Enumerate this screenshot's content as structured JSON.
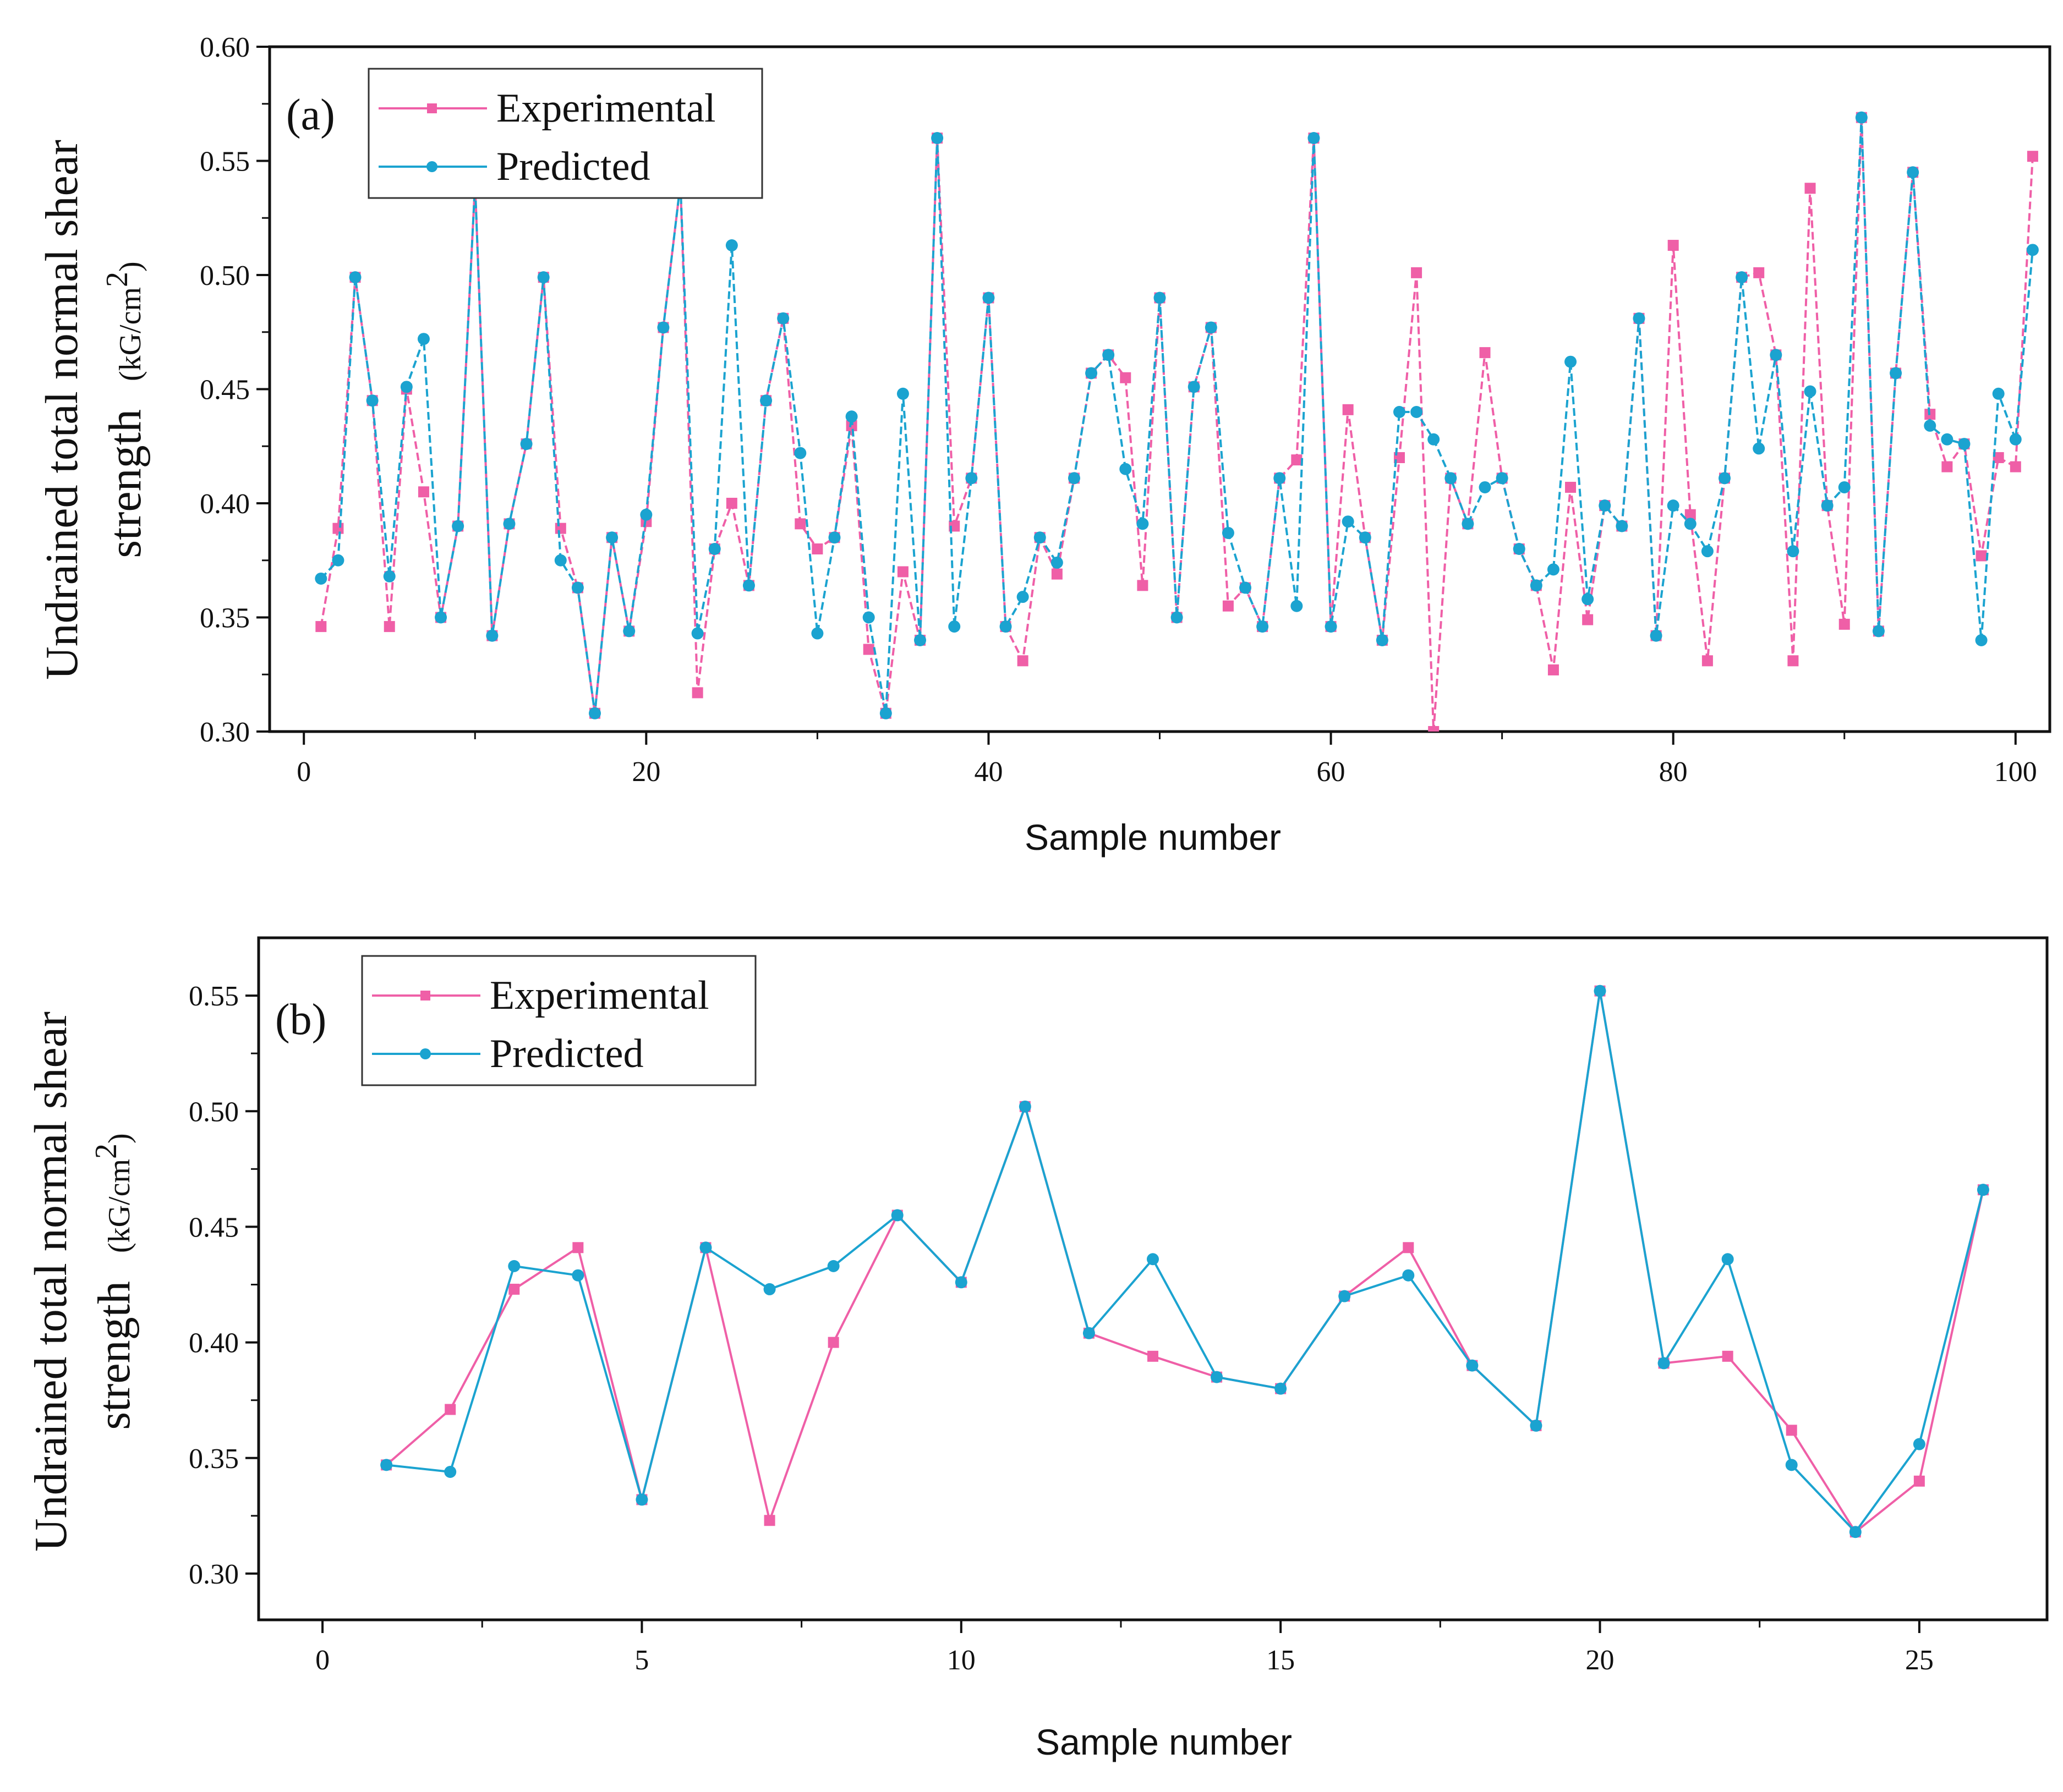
{
  "colors": {
    "experimental": "#ef5fa7",
    "predicted": "#1ba3d0",
    "axis": "#111111"
  },
  "chart_data": [
    {
      "type": "line",
      "panel_label": "(a)",
      "xlabel": "Sample number",
      "ylabel_line1": "Undrained total normal shear",
      "ylabel_line2": "strength",
      "ylabel_unit_prefix": "(kG/cm",
      "ylabel_unit_sup": "2",
      "ylabel_unit_suffix": ")",
      "xlim": [
        -2,
        102
      ],
      "ylim": [
        0.3,
        0.6
      ],
      "xticks": [
        0,
        20,
        40,
        60,
        80,
        100
      ],
      "xtick_labels": [
        "0",
        "20",
        "40",
        "60",
        "80",
        "100"
      ],
      "yticks": [
        0.3,
        0.35,
        0.4,
        0.45,
        0.5,
        0.55,
        0.6
      ],
      "ytick_labels": [
        "0.30",
        "0.35",
        "0.40",
        "0.45",
        "0.50",
        "0.55",
        "0.60"
      ],
      "legend": [
        "Experimental",
        "Predicted"
      ],
      "legend_position": "top-left",
      "series": [
        {
          "name": "Experimental",
          "x": [
            1,
            2,
            3,
            4,
            5,
            6,
            7,
            8,
            9,
            10,
            11,
            12,
            13,
            14,
            15,
            16,
            17,
            18,
            19,
            20,
            21,
            22,
            23,
            24,
            25,
            26,
            27,
            28,
            29,
            30,
            31,
            32,
            33,
            34,
            35,
            36,
            37,
            38,
            39,
            40,
            41,
            42,
            43,
            44,
            45,
            46,
            47,
            48,
            49,
            50,
            51,
            52,
            53,
            54,
            55,
            56,
            57,
            58,
            59,
            60,
            61,
            62,
            63,
            64,
            65,
            66,
            67,
            68,
            69,
            70,
            71,
            72,
            73,
            74,
            75,
            76,
            77,
            78,
            79,
            80,
            81,
            82,
            83,
            84,
            85,
            86,
            87,
            88,
            89,
            90,
            91,
            92,
            93,
            94,
            95,
            96,
            97,
            98,
            99,
            100,
            101
          ],
          "values": [
            0.346,
            0.389,
            0.499,
            0.445,
            0.346,
            0.45,
            0.405,
            0.35,
            0.39,
            0.54,
            0.342,
            0.391,
            0.426,
            0.499,
            0.389,
            0.363,
            0.308,
            0.385,
            0.344,
            0.392,
            0.477,
            0.54,
            0.317,
            0.38,
            0.4,
            0.364,
            0.445,
            0.481,
            0.391,
            0.38,
            0.385,
            0.434,
            0.336,
            0.308,
            0.37,
            0.34,
            0.56,
            0.39,
            0.411,
            0.49,
            0.346,
            0.331,
            0.385,
            0.369,
            0.411,
            0.457,
            0.465,
            0.455,
            0.364,
            0.49,
            0.35,
            0.451,
            0.477,
            0.355,
            0.363,
            0.346,
            0.411,
            0.419,
            0.56,
            0.346,
            0.441,
            0.385,
            0.34,
            0.42,
            0.501,
            0.3,
            0.411,
            0.391,
            0.466,
            0.411,
            0.38,
            0.364,
            0.327,
            0.407,
            0.349,
            0.399,
            0.39,
            0.481,
            0.342,
            0.513,
            0.395,
            0.331,
            0.411,
            0.499,
            0.501,
            0.465,
            0.331,
            0.538,
            0.399,
            0.347,
            0.569,
            0.344,
            0.457,
            0.545,
            0.439,
            0.416,
            0.426,
            0.377,
            0.42,
            0.416,
            0.552
          ]
        },
        {
          "name": "Predicted",
          "x": [
            1,
            2,
            3,
            4,
            5,
            6,
            7,
            8,
            9,
            10,
            11,
            12,
            13,
            14,
            15,
            16,
            17,
            18,
            19,
            20,
            21,
            22,
            23,
            24,
            25,
            26,
            27,
            28,
            29,
            30,
            31,
            32,
            33,
            34,
            35,
            36,
            37,
            38,
            39,
            40,
            41,
            42,
            43,
            44,
            45,
            46,
            47,
            48,
            49,
            50,
            51,
            52,
            53,
            54,
            55,
            56,
            57,
            58,
            59,
            60,
            61,
            62,
            63,
            64,
            65,
            66,
            67,
            68,
            69,
            70,
            71,
            72,
            73,
            74,
            75,
            76,
            77,
            78,
            79,
            80,
            81,
            82,
            83,
            84,
            85,
            86,
            87,
            88,
            89,
            90,
            91,
            92,
            93,
            94,
            95,
            96,
            97,
            98,
            99,
            100,
            101
          ],
          "values": [
            0.367,
            0.375,
            0.499,
            0.445,
            0.368,
            0.451,
            0.472,
            0.35,
            0.39,
            0.54,
            0.342,
            0.391,
            0.426,
            0.499,
            0.375,
            0.363,
            0.308,
            0.385,
            0.344,
            0.395,
            0.477,
            0.54,
            0.343,
            0.38,
            0.513,
            0.364,
            0.445,
            0.481,
            0.422,
            0.343,
            0.385,
            0.438,
            0.35,
            0.308,
            0.448,
            0.34,
            0.56,
            0.346,
            0.411,
            0.49,
            0.346,
            0.359,
            0.385,
            0.374,
            0.411,
            0.457,
            0.465,
            0.415,
            0.391,
            0.49,
            0.35,
            0.451,
            0.477,
            0.387,
            0.363,
            0.346,
            0.411,
            0.355,
            0.56,
            0.346,
            0.392,
            0.385,
            0.34,
            0.44,
            0.44,
            0.428,
            0.411,
            0.391,
            0.407,
            0.411,
            0.38,
            0.364,
            0.371,
            0.462,
            0.358,
            0.399,
            0.39,
            0.481,
            0.342,
            0.399,
            0.391,
            0.379,
            0.411,
            0.499,
            0.424,
            0.465,
            0.379,
            0.449,
            0.399,
            0.407,
            0.569,
            0.344,
            0.457,
            0.545,
            0.434,
            0.428,
            0.426,
            0.34,
            0.448,
            0.428,
            0.511
          ]
        }
      ]
    },
    {
      "type": "line",
      "panel_label": "(b)",
      "xlabel": "Sample number",
      "ylabel_line1": "Undrained total normal shear",
      "ylabel_line2": "strength",
      "ylabel_unit_prefix": "(kG/cm",
      "ylabel_unit_sup": "2",
      "ylabel_unit_suffix": ")",
      "xlim": [
        -1,
        27
      ],
      "ylim": [
        0.28,
        0.575
      ],
      "xticks": [
        0,
        5,
        10,
        15,
        20,
        25
      ],
      "xtick_labels": [
        "0",
        "5",
        "10",
        "15",
        "20",
        "25"
      ],
      "yticks": [
        0.3,
        0.35,
        0.4,
        0.45,
        0.5,
        0.55
      ],
      "ytick_labels": [
        "0.30",
        "0.35",
        "0.40",
        "0.45",
        "0.50",
        "0.55"
      ],
      "legend": [
        "Experimental",
        "Predicted"
      ],
      "legend_position": "top-left",
      "series": [
        {
          "name": "Experimental",
          "x": [
            1,
            2,
            3,
            4,
            5,
            6,
            7,
            8,
            9,
            10,
            11,
            12,
            13,
            14,
            15,
            16,
            17,
            18,
            19,
            20,
            21,
            22,
            23,
            24,
            25,
            26
          ],
          "values": [
            0.347,
            0.371,
            0.423,
            0.441,
            0.332,
            0.441,
            0.323,
            0.4,
            0.455,
            0.426,
            0.502,
            0.404,
            0.394,
            0.385,
            0.38,
            0.42,
            0.441,
            0.39,
            0.364,
            0.552,
            0.391,
            0.394,
            0.362,
            0.318,
            0.34,
            0.466
          ]
        },
        {
          "name": "Predicted",
          "x": [
            1,
            2,
            3,
            4,
            5,
            6,
            7,
            8,
            9,
            10,
            11,
            12,
            13,
            14,
            15,
            16,
            17,
            18,
            19,
            20,
            21,
            22,
            23,
            24,
            25,
            26
          ],
          "values": [
            0.347,
            0.344,
            0.433,
            0.429,
            0.332,
            0.441,
            0.423,
            0.433,
            0.455,
            0.426,
            0.502,
            0.404,
            0.436,
            0.385,
            0.38,
            0.42,
            0.429,
            0.39,
            0.364,
            0.552,
            0.391,
            0.436,
            0.347,
            0.318,
            0.356,
            0.466
          ]
        }
      ]
    }
  ]
}
